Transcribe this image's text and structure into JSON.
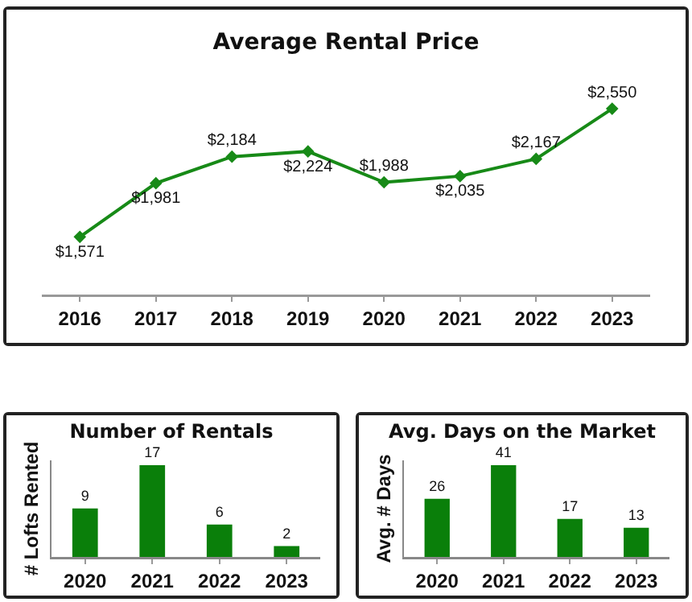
{
  "chart_data": [
    {
      "type": "line",
      "title": "Average Rental Price",
      "categories": [
        "2016",
        "2017",
        "2018",
        "2019",
        "2020",
        "2021",
        "2022",
        "2023"
      ],
      "series": [
        {
          "color": "#178a17",
          "values": [
            1571,
            1981,
            2184,
            2224,
            1988,
            2035,
            2167,
            2550
          ],
          "value_labels": [
            "$1,571",
            "$1,981",
            "$2,184",
            "$2,224",
            "$1,988",
            "$2,035",
            "$2,167",
            "$2,550"
          ]
        }
      ],
      "marker": "diamond",
      "line_style": "solid",
      "grid": false,
      "legend": false
    },
    {
      "type": "bar",
      "title": "Number of Rentals",
      "ylabel": "# Lofts Rented",
      "categories": [
        "2020",
        "2021",
        "2022",
        "2023"
      ],
      "values": [
        9,
        17,
        6,
        2
      ],
      "color": "#0a7f0a",
      "data_labels": true,
      "grid": false,
      "legend": false
    },
    {
      "type": "bar",
      "title": "Avg. Days on the Market",
      "ylabel": "Avg. # Days",
      "categories": [
        "2020",
        "2021",
        "2022",
        "2023"
      ],
      "values": [
        26,
        41,
        17,
        13
      ],
      "color": "#0a7f0a",
      "data_labels": true,
      "grid": false,
      "legend": false
    }
  ]
}
